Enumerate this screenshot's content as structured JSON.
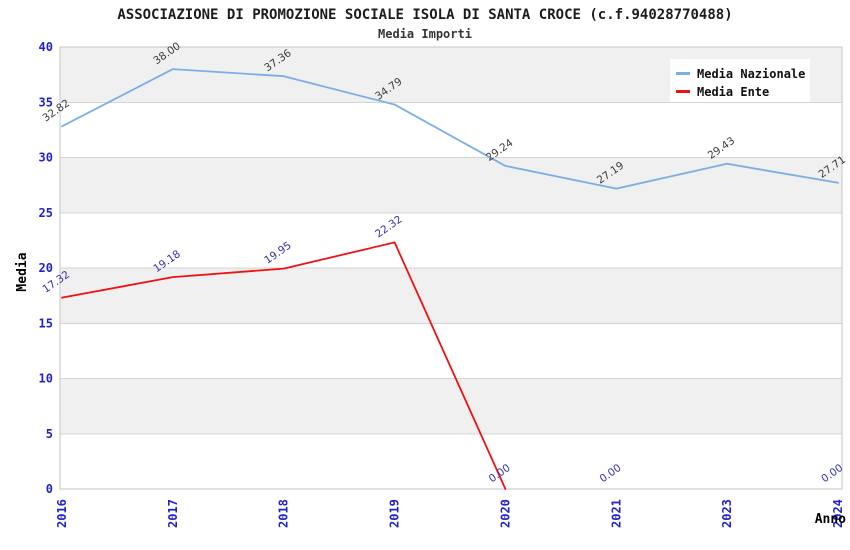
{
  "header": {
    "title": "ASSOCIAZIONE DI PROMOZIONE SOCIALE ISOLA DI SANTA CROCE (c.f.94028770488)",
    "subtitle": "Media Importi"
  },
  "chart_data": {
    "type": "line",
    "categories": [
      "2016",
      "2017",
      "2018",
      "2019",
      "2020",
      "2021",
      "2023",
      "2024"
    ],
    "xlabel": "Anno",
    "ylabel": "Media",
    "ylim": [
      0,
      40
    ],
    "ytick_step": 5,
    "yticks": [
      0,
      5,
      10,
      15,
      20,
      25,
      30,
      35,
      40
    ],
    "grid": "horizontal",
    "plot_bands": "alternating gray/white horizontal bands every 5 units",
    "legend_position": "top-right",
    "legend": [
      "Media Nazionale",
      "Media Ente"
    ],
    "series": [
      {
        "name": "Media Nazionale",
        "color": "#7caee6",
        "label_color": "#3c3c3c",
        "values": [
          32.82,
          38.0,
          37.36,
          34.79,
          29.24,
          27.19,
          29.43,
          27.71
        ]
      },
      {
        "name": "Media Ente",
        "color": "#ee1212",
        "label_color": "#3333aa",
        "values": [
          17.32,
          19.18,
          19.95,
          22.32,
          0.0,
          0.0,
          null,
          0.0
        ],
        "line_end_index": 4
      }
    ],
    "colors": {
      "tick_label": "#2222cc",
      "band": "#f0f0f0",
      "grid": "#d4d4d4",
      "border": "#c6c6c6",
      "legend_bg": "#ffffff"
    }
  }
}
